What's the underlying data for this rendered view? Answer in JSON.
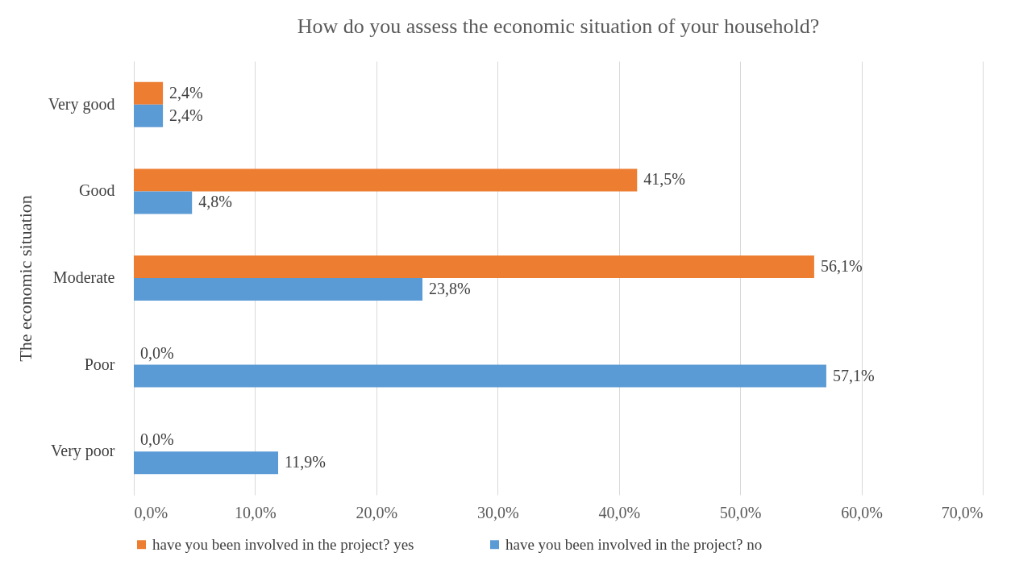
{
  "chart_data": {
    "type": "bar",
    "orientation": "horizontal",
    "title": "How do you assess the economic situation of your household?",
    "ylabel": "The economic situation",
    "categories": [
      "Very good",
      "Good",
      "Moderate",
      "Poor",
      "Very poor"
    ],
    "series": [
      {
        "name": "have you been involved in the project? yes",
        "color": "#ed7d31",
        "values": [
          2.4,
          41.5,
          56.1,
          0.0,
          0.0
        ],
        "value_labels": [
          "2,4%",
          "41,5%",
          "56,1%",
          "0,0%",
          "0,0%"
        ]
      },
      {
        "name": "have you been involved in the project? no",
        "color": "#5b9bd5",
        "values": [
          2.4,
          4.8,
          23.8,
          57.1,
          11.9
        ],
        "value_labels": [
          "2,4%",
          "4,8%",
          "23,8%",
          "57,1%",
          "11,9%"
        ]
      }
    ],
    "xlim": [
      0,
      70
    ],
    "xticks": [
      {
        "value": 0,
        "label": "0,0%"
      },
      {
        "value": 10,
        "label": "10,0%"
      },
      {
        "value": 20,
        "label": "20,0%"
      },
      {
        "value": 30,
        "label": "30,0%"
      },
      {
        "value": 40,
        "label": "40,0%"
      },
      {
        "value": 50,
        "label": "50,0%"
      },
      {
        "value": 60,
        "label": "60,0%"
      },
      {
        "value": 70,
        "label": "70,0%"
      }
    ],
    "grid": "x",
    "legend": "bottom"
  }
}
